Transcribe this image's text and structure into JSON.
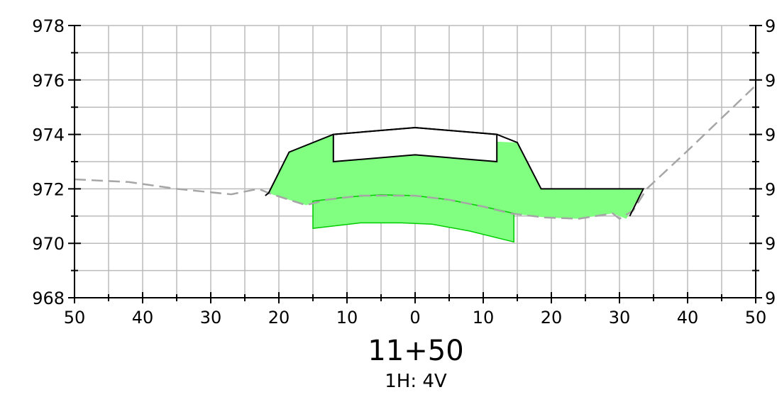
{
  "station": "11+50",
  "scale": "1H: 4V",
  "chart_data": {
    "type": "cross-section",
    "x_tick_labels": [
      "50",
      "40",
      "30",
      "20",
      "10",
      "0",
      "10",
      "20",
      "30",
      "40",
      "50"
    ],
    "y_tick_labels_left": [
      "978",
      "976",
      "974",
      "972",
      "970",
      "968"
    ],
    "y_tick_labels_right": [
      "9",
      "9",
      "9",
      "9",
      "9",
      "9"
    ],
    "xlim": [
      -50,
      50
    ],
    "ylim": [
      968,
      978
    ],
    "grid": true,
    "colors": {
      "fill": "#80ff80",
      "fill_stroke": "#00cc00",
      "ground": "#a6a6a6",
      "grid": "#bbbbbb",
      "outline": "#000000"
    },
    "ground_line": [
      [
        -50,
        972.35
      ],
      [
        -42,
        972.25
      ],
      [
        -35,
        972.0
      ],
      [
        -27,
        971.8
      ],
      [
        -23,
        972.0
      ],
      [
        -21,
        971.8
      ],
      [
        -16,
        971.4
      ],
      [
        -13,
        971.6
      ],
      [
        -8,
        971.75
      ],
      [
        0,
        971.75
      ],
      [
        5,
        971.6
      ],
      [
        10,
        971.35
      ],
      [
        14,
        971.1
      ],
      [
        19,
        970.95
      ],
      [
        24,
        970.9
      ],
      [
        29,
        971.1
      ],
      [
        30,
        970.9
      ],
      [
        32,
        971.2
      ],
      [
        34,
        972.0
      ],
      [
        40,
        973.4
      ],
      [
        50,
        975.8
      ]
    ],
    "fill_area": [
      [
        -21.5,
        971.85
      ],
      [
        -18.5,
        973.35
      ],
      [
        -12,
        974.0
      ],
      [
        15,
        973.7
      ],
      [
        18.5,
        972.0
      ],
      [
        33.5,
        972.0
      ],
      [
        31,
        970.9
      ],
      [
        29,
        971.1
      ],
      [
        24,
        970.9
      ],
      [
        19,
        970.95
      ],
      [
        14,
        971.1
      ],
      [
        10,
        971.35
      ],
      [
        5,
        971.6
      ],
      [
        0,
        971.75
      ],
      [
        -8,
        971.75
      ],
      [
        -13,
        971.6
      ],
      [
        -16,
        971.4
      ],
      [
        -21,
        971.8
      ]
    ],
    "outline": [
      [
        -22,
        971.75
      ],
      [
        -21.5,
        971.85
      ],
      [
        -18.5,
        973.35
      ],
      [
        -12,
        974.0
      ],
      [
        0,
        974.25
      ],
      [
        12,
        974.0
      ],
      [
        15,
        973.7
      ],
      [
        18.5,
        972.0
      ],
      [
        33.5,
        972.0
      ],
      [
        31.5,
        971.0
      ]
    ],
    "pavement_box": [
      [
        -12,
        974.0
      ],
      [
        0,
        974.25
      ],
      [
        12,
        974.0
      ],
      [
        12,
        973.0
      ],
      [
        0,
        973.25
      ],
      [
        -12,
        973.0
      ]
    ],
    "subgrade": [
      [
        -15,
        971.55
      ],
      [
        -10,
        971.7
      ],
      [
        -5,
        971.78
      ],
      [
        0,
        971.75
      ],
      [
        5,
        971.6
      ],
      [
        10,
        971.35
      ],
      [
        14.5,
        971.1
      ],
      [
        14.5,
        970.05
      ],
      [
        8,
        970.45
      ],
      [
        2.5,
        970.7
      ],
      [
        -2,
        970.75
      ],
      [
        -8,
        970.75
      ],
      [
        -15,
        970.55
      ]
    ]
  }
}
